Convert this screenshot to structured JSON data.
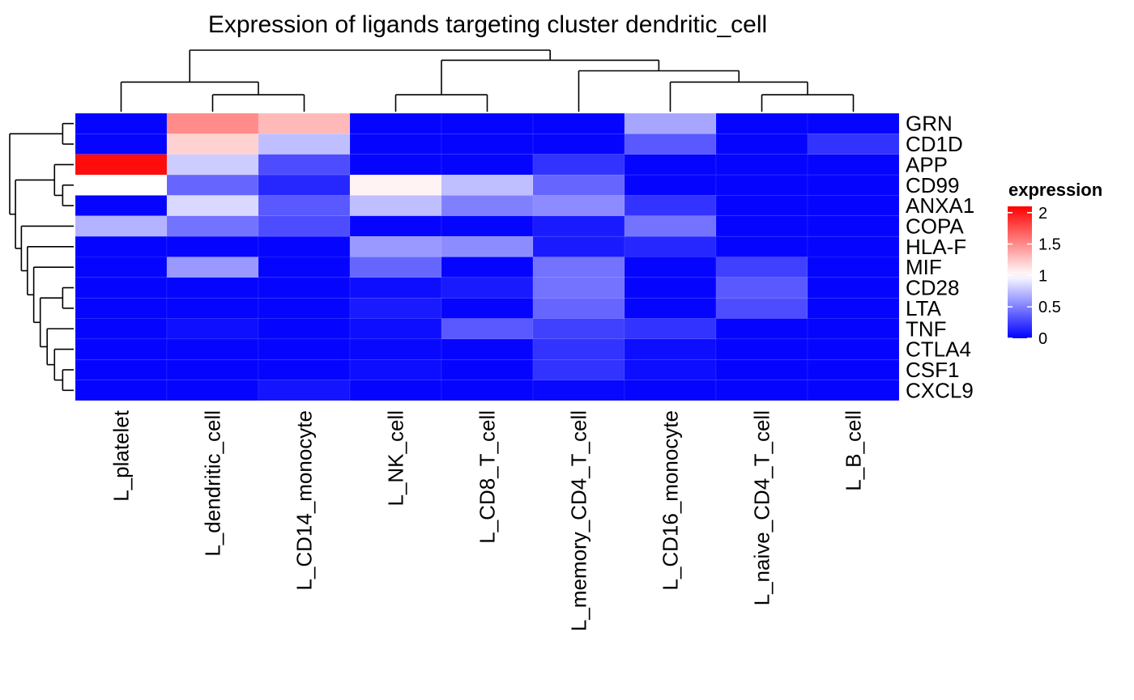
{
  "chart_data": {
    "type": "heatmap",
    "title": "Expression of ligands targeting cluster dendritic_cell",
    "columns": [
      "L_platelet",
      "L_dendritic_cell",
      "L_CD14_monocyte",
      "L_NK_cell",
      "L_CD8_T_cell",
      "L_memory_CD4_T_cell",
      "L_CD16_monocyte",
      "L_naive_CD4_T_cell",
      "L_B_cell"
    ],
    "rows": [
      "GRN",
      "CD1D",
      "APP",
      "CD99",
      "ANXA1",
      "COPA",
      "HLA-F",
      "MIF",
      "CD28",
      "LTA",
      "TNF",
      "CTLA4",
      "CSF1",
      "CXCL9"
    ],
    "values": [
      [
        0.02,
        1.5,
        1.3,
        0.02,
        0.02,
        0.02,
        0.65,
        0.02,
        0.02
      ],
      [
        0.02,
        1.2,
        0.75,
        0.02,
        0.02,
        0.02,
        0.35,
        0.02,
        0.2
      ],
      [
        2.05,
        0.8,
        0.3,
        0.02,
        0.02,
        0.2,
        0.02,
        0.02,
        0.02
      ],
      [
        1.0,
        0.4,
        0.15,
        1.05,
        0.75,
        0.4,
        0.02,
        0.02,
        0.02
      ],
      [
        0.02,
        0.85,
        0.35,
        0.75,
        0.5,
        0.55,
        0.2,
        0.02,
        0.02
      ],
      [
        0.7,
        0.45,
        0.3,
        0.02,
        0.02,
        0.1,
        0.45,
        0.02,
        0.02
      ],
      [
        0.02,
        0.02,
        0.02,
        0.6,
        0.55,
        0.1,
        0.15,
        0.02,
        0.02
      ],
      [
        0.02,
        0.6,
        0.02,
        0.4,
        0.02,
        0.45,
        0.02,
        0.25,
        0.02
      ],
      [
        0.02,
        0.02,
        0.02,
        0.05,
        0.1,
        0.45,
        0.02,
        0.35,
        0.02
      ],
      [
        0.02,
        0.02,
        0.02,
        0.1,
        0.02,
        0.4,
        0.02,
        0.3,
        0.02
      ],
      [
        0.02,
        0.06,
        0.02,
        0.05,
        0.35,
        0.25,
        0.2,
        0.02,
        0.02
      ],
      [
        0.02,
        0.02,
        0.02,
        0.03,
        0.02,
        0.2,
        0.05,
        0.02,
        0.02
      ],
      [
        0.02,
        0.02,
        0.02,
        0.05,
        0.02,
        0.2,
        0.05,
        0.02,
        0.02
      ],
      [
        0.02,
        0.02,
        0.08,
        0.02,
        0.02,
        0.03,
        0.02,
        0.02,
        0.02
      ]
    ],
    "color_scale": {
      "low": "#0000FF",
      "mid": "#FFFFFF",
      "high": "#FF0000",
      "min": 0,
      "midpoint": 1.0,
      "max": 2.1
    },
    "legend": {
      "title": "expression",
      "ticks": [
        "2",
        "1.5",
        "1",
        "0.5",
        "0"
      ],
      "tick_values": [
        2,
        1.5,
        1,
        0.5,
        0
      ],
      "position": "right"
    },
    "col_dendrogram": "((L_platelet,(L_dendritic_cell,L_CD14_monocyte)),((L_NK_cell,L_CD8_T_cell),(L_memory_CD4_T_cell,(L_CD16_monocyte,(L_naive_CD4_T_cell,L_B_cell)))))",
    "row_dendrogram": "((GRN,CD1D),((APP,(CD99,ANXA1)),(COPA,(HLA-F,(MIF,((CD28,LTA),(TNF,(CTLA4,(CSF1,CXCL9)))))))))"
  }
}
